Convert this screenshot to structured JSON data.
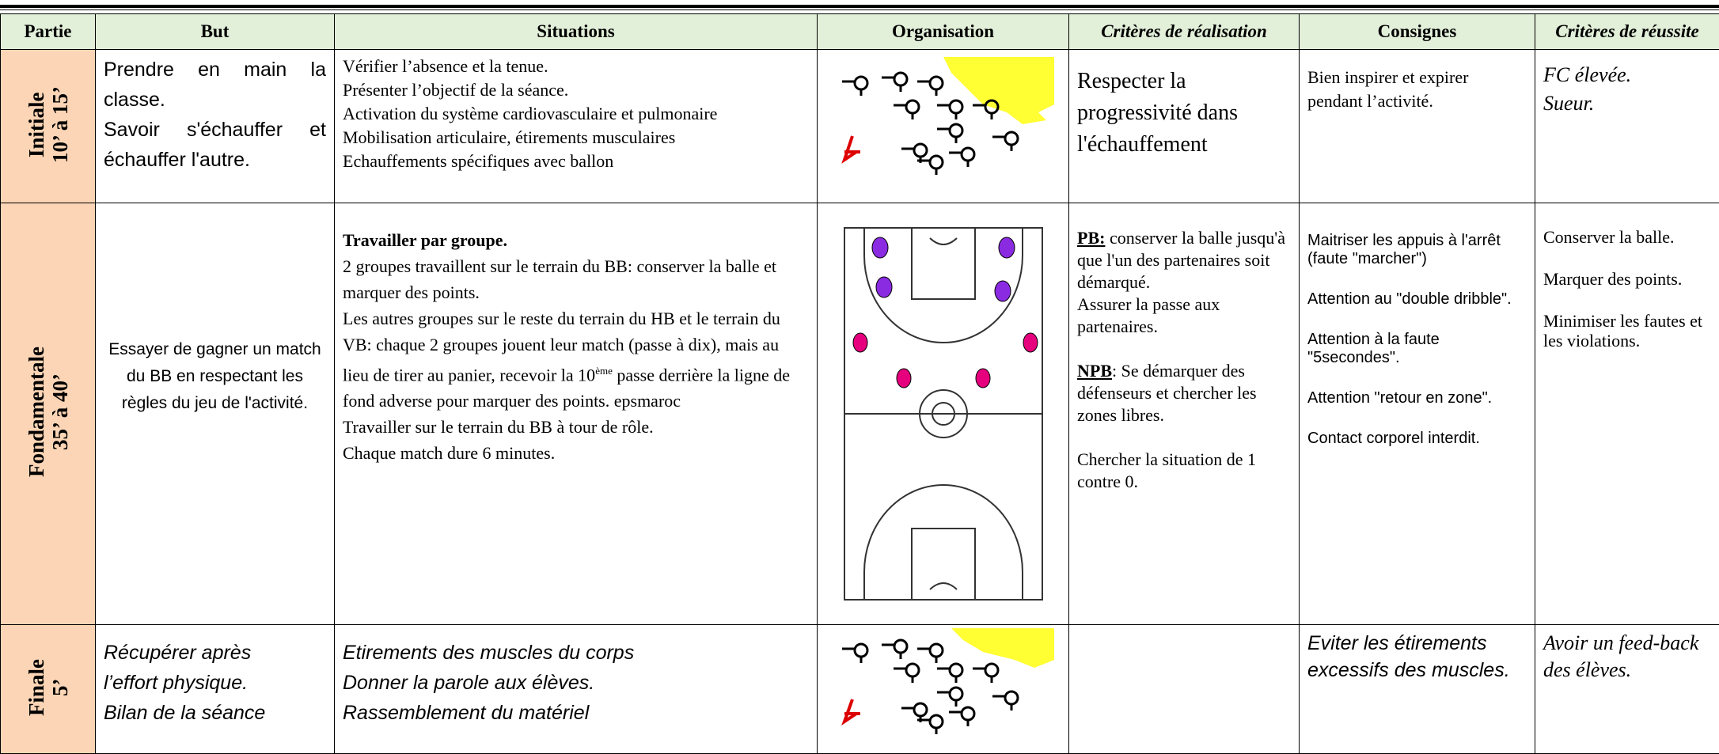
{
  "header": [
    "Partie",
    "But",
    "Situations",
    "Organisation",
    "Critères de réalisation",
    "Consignes",
    "Critères de réussite"
  ],
  "rows": [
    {
      "partie": [
        "Initiale",
        "10’ à 15’"
      ],
      "but": [
        "Prendre en main la classe.",
        "Savoir s'échauffer et échauffer l'autre."
      ],
      "situations": [
        "Vérifier l’absence et la tenue.",
        "Présenter l’objectif de la séance.",
        "Activation du système cardiovasculaire et pulmonaire",
        "Mobilisation articulaire, étirements musculaires",
        "Echauffements spécifiques avec ballon"
      ],
      "realisation": "Respecter la progressivité dans l'échauffement",
      "consignes": "Bien inspirer et expirer pendant l’activité.",
      "reussite": [
        "FC élevée.",
        "Sueur."
      ]
    },
    {
      "partie": [
        "Fondamentale",
        "35’ à 40’"
      ],
      "but": "Essayer de gagner un match du BB en respectant les règles du jeu de l'activité.",
      "situations": {
        "title": "Travailler par groupe.",
        "lines": [
          "2 groupes travaillent sur le terrain du BB: conserver la balle et marquer des points.",
          "Travailler sur le terrain du BB à tour de rôle.",
          "Chaque match dure 6 minutes."
        ],
        "match": {
          "before": "Les autres groupes sur le reste du terrain du HB et le terrain du VB: chaque 2 groupes jouent leur match (passe à dix), mais au lieu de tirer au panier, recevoir la 10",
          "sup": "ème",
          "after": "passe derrière la ligne de fond adverse pour marquer des points. epsmaroc"
        }
      },
      "realisation": [
        {
          "label": "PB:",
          "text": "conserver la balle jusqu'à que l'un des partenaires soit démarqué.",
          "extra": "Assurer la passe aux partenaires."
        },
        {
          "label": "NPB",
          "text": ": Se démarquer des défenseurs et chercher les zones libres."
        },
        "Chercher la situation de 1 contre 0."
      ],
      "consignes": [
        "Maitriser les appuis à l'arrêt (faute \"marcher\")",
        "Attention au \"double dribble\".",
        "Attention à la faute \"5secondes\".",
        "Attention \"retour en zone\".",
        "Contact corporel interdit."
      ],
      "reussite": [
        "Conserver la balle.",
        "Marquer des points.",
        "Minimiser les fautes et les violations."
      ]
    },
    {
      "partie": [
        "Finale",
        "5’"
      ],
      "but": [
        "Récupérer après",
        "l’effort physique.",
        "Bilan de la séance"
      ],
      "situations": [
        "Etirements des muscles du corps",
        "Donner la parole aux élèves.",
        "Rassemblement du matériel"
      ],
      "consignes": "Eviter les étirements excessifs des muscles.",
      "reussite": "Avoir un feed-back des élèves."
    }
  ]
}
